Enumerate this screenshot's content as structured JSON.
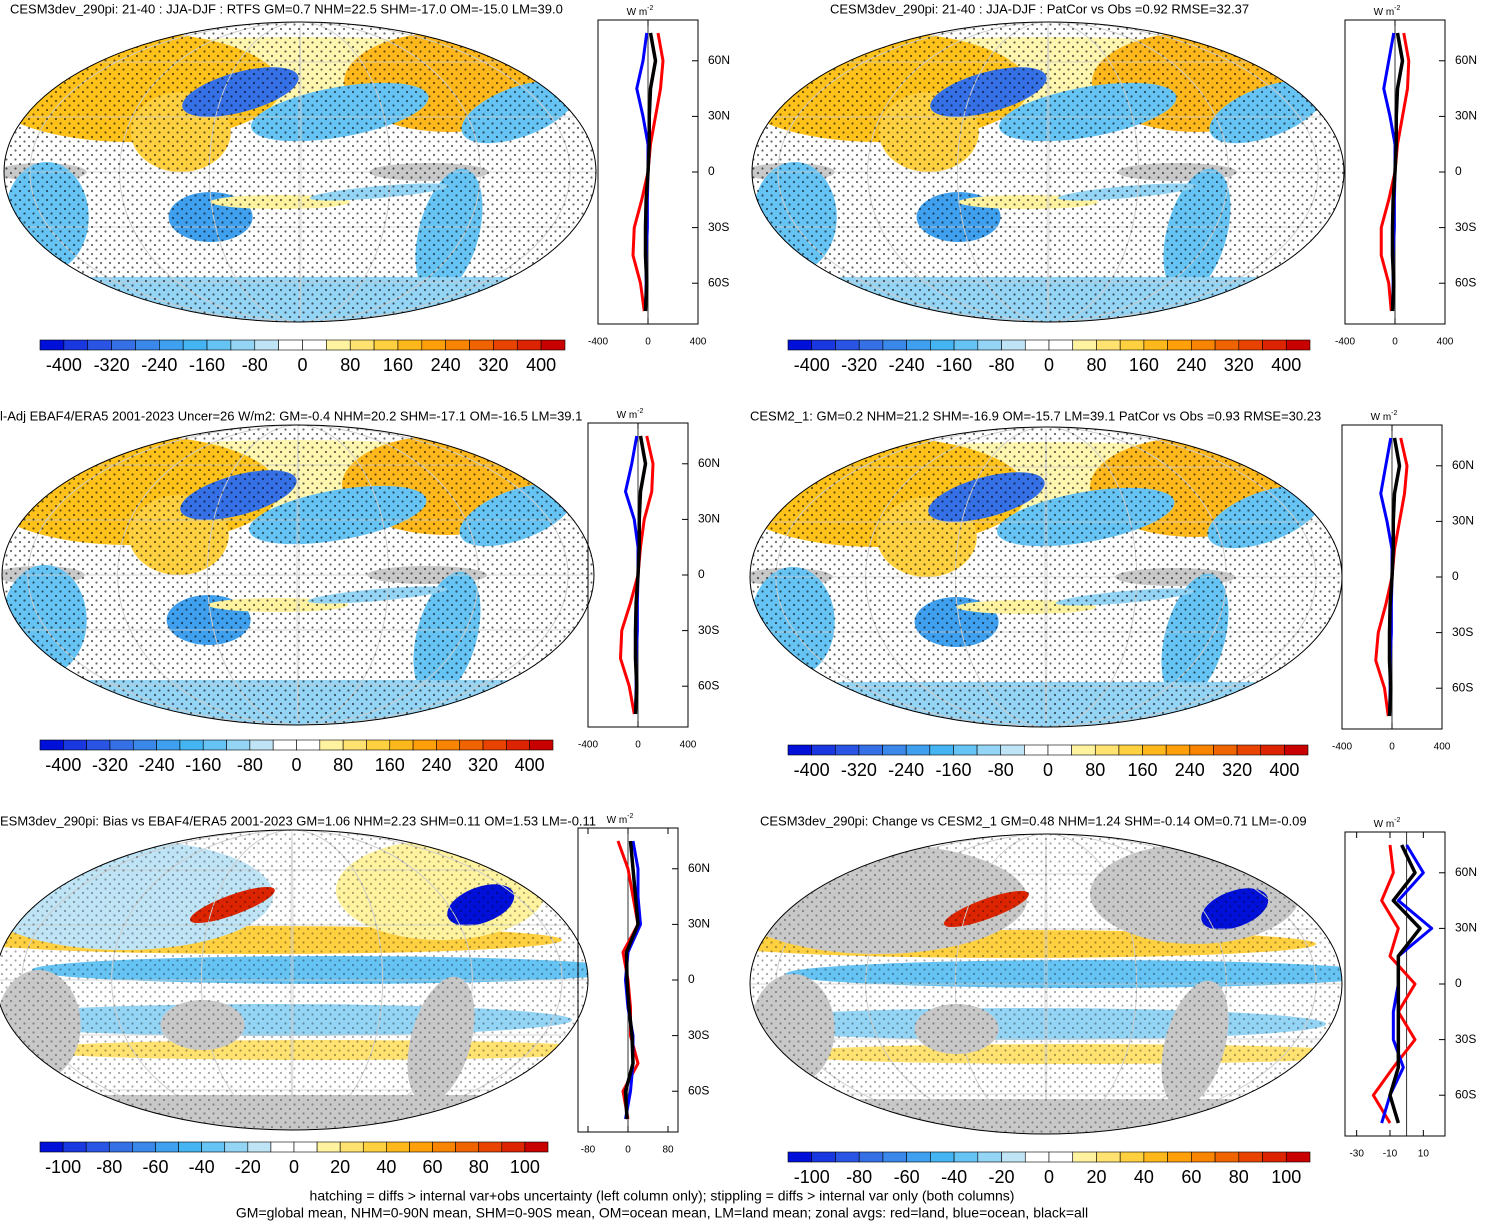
{
  "chart_data": [
    {
      "type": "map",
      "title": "CESM3dev_290pi: 21-40 : JJA-DJF : RTFS GM=0.7 NHM=22.5 SHM=-17.0 OM=-15.0 LM=39.0",
      "units": "W m",
      "units_sup": "-2",
      "colors": [
        "#0010d8",
        "#1a38e0",
        "#2a55e4",
        "#3570e6",
        "#3a88ea",
        "#3ea0ee",
        "#44b4f2",
        "#66c4f4",
        "#94d4f4",
        "#bfe4f6",
        "#ffffff",
        "#ffffff",
        "#fff3a0",
        "#ffe270",
        "#ffd040",
        "#ffb81c",
        "#ffa00a",
        "#f88400",
        "#f06400",
        "#e84400",
        "#dc2400",
        "#c80000"
      ],
      "clim": [
        -440,
        440
      ],
      "cticks": [
        -400,
        -320,
        -240,
        -160,
        -80,
        0,
        80,
        160,
        240,
        320,
        400
      ],
      "y": [
        -75,
        -60,
        -45,
        -30,
        -15,
        0,
        15,
        30,
        45,
        60,
        75
      ],
      "series": [
        {
          "color": "#ff0000",
          "values": [
            -30,
            -60,
            -120,
            -110,
            -50,
            0,
            20,
            60,
            100,
            120,
            80
          ]
        },
        {
          "color": "#0000ff",
          "values": [
            -20,
            -15,
            -15,
            -5,
            -5,
            0,
            0,
            -40,
            -90,
            -40,
            -10
          ]
        },
        {
          "color": "#000000",
          "values": [
            -20,
            -10,
            -20,
            -20,
            -15,
            0,
            10,
            10,
            20,
            60,
            20
          ]
        }
      ],
      "xlim": [
        -400,
        400
      ],
      "xticks": [
        -400,
        0,
        400
      ],
      "ylim": [
        -82,
        82
      ],
      "yticks": [
        {
          "value": 60,
          "label": "60N"
        },
        {
          "value": 30,
          "label": "30N"
        },
        0,
        {
          "value": -30,
          "label": "30S"
        },
        {
          "value": -60,
          "label": "60S"
        }
      ]
    },
    {
      "type": "map",
      "title": "CESM3dev_290pi: 21-40 : JJA-DJF : PatCor vs Obs =0.92 RMSE=32.37",
      "units": "W m",
      "units_sup": "-2",
      "colors": [
        "#0010d8",
        "#1a38e0",
        "#2a55e4",
        "#3570e6",
        "#3a88ea",
        "#3ea0ee",
        "#44b4f2",
        "#66c4f4",
        "#94d4f4",
        "#bfe4f6",
        "#ffffff",
        "#ffffff",
        "#fff3a0",
        "#ffe270",
        "#ffd040",
        "#ffb81c",
        "#ffa00a",
        "#f88400",
        "#f06400",
        "#e84400",
        "#dc2400",
        "#c80000"
      ],
      "clim": [
        -440,
        440
      ],
      "cticks": [
        -400,
        -320,
        -240,
        -160,
        -80,
        0,
        80,
        160,
        240,
        320,
        400
      ],
      "y": [
        -75,
        -60,
        -45,
        -30,
        -15,
        0,
        15,
        30,
        45,
        60,
        75
      ],
      "series": [
        {
          "color": "#ff0000",
          "values": [
            -30,
            -50,
            -110,
            -110,
            -50,
            0,
            20,
            60,
            100,
            110,
            70
          ]
        },
        {
          "color": "#0000ff",
          "values": [
            -20,
            -15,
            -15,
            -5,
            -5,
            0,
            0,
            -40,
            -90,
            -50,
            -10
          ]
        },
        {
          "color": "#000000",
          "values": [
            -20,
            -10,
            -20,
            -20,
            -15,
            0,
            10,
            10,
            20,
            60,
            20
          ]
        }
      ],
      "xlim": [
        -400,
        400
      ],
      "xticks": [
        -400,
        0,
        400
      ],
      "ylim": [
        -82,
        82
      ],
      "yticks": [
        {
          "value": 60,
          "label": "60N"
        },
        {
          "value": 30,
          "label": "30N"
        },
        0,
        {
          "value": -30,
          "label": "30S"
        },
        {
          "value": -60,
          "label": "60S"
        }
      ]
    },
    {
      "type": "map",
      "title": "l-Adj EBAF4/ERA5 2001-2023 Uncer=26 W/m2: GM=-0.4 NHM=20.2 SHM=-17.1 OM=-16.5 LM=39.1",
      "units": "W m",
      "units_sup": "-2",
      "colors": [
        "#0010d8",
        "#1a38e0",
        "#2a55e4",
        "#3570e6",
        "#3a88ea",
        "#3ea0ee",
        "#44b4f2",
        "#66c4f4",
        "#94d4f4",
        "#bfe4f6",
        "#ffffff",
        "#ffffff",
        "#fff3a0",
        "#ffe270",
        "#ffd040",
        "#ffb81c",
        "#ffa00a",
        "#f88400",
        "#f06400",
        "#e84400",
        "#dc2400",
        "#c80000"
      ],
      "clim": [
        -440,
        440
      ],
      "cticks": [
        -400,
        -320,
        -240,
        -160,
        -80,
        0,
        80,
        160,
        240,
        320,
        400
      ],
      "y": [
        -75,
        -60,
        -45,
        -30,
        -15,
        0,
        15,
        30,
        45,
        60,
        75
      ],
      "series": [
        {
          "color": "#ff0000",
          "values": [
            -30,
            -70,
            -140,
            -130,
            -60,
            0,
            20,
            50,
            110,
            120,
            70
          ]
        },
        {
          "color": "#0000ff",
          "values": [
            -20,
            -15,
            -15,
            -5,
            -5,
            0,
            0,
            -30,
            -100,
            -50,
            -10
          ]
        },
        {
          "color": "#000000",
          "values": [
            -20,
            -10,
            -20,
            -20,
            -15,
            0,
            10,
            10,
            20,
            60,
            20
          ]
        }
      ],
      "xlim": [
        -400,
        400
      ],
      "xticks": [
        -400,
        0,
        400
      ],
      "ylim": [
        -82,
        82
      ],
      "yticks": [
        {
          "value": 60,
          "label": "60N"
        },
        {
          "value": 30,
          "label": "30N"
        },
        0,
        {
          "value": -30,
          "label": "30S"
        },
        {
          "value": -60,
          "label": "60S"
        }
      ]
    },
    {
      "type": "map",
      "title": "CESM2_1: GM=0.2 NHM=21.2 SHM=-16.9 OM=-15.7 LM=39.1 PatCor vs Obs =0.93 RMSE=30.23",
      "units": "W m",
      "units_sup": "-2",
      "colors": [
        "#0010d8",
        "#1a38e0",
        "#2a55e4",
        "#3570e6",
        "#3a88ea",
        "#3ea0ee",
        "#44b4f2",
        "#66c4f4",
        "#94d4f4",
        "#bfe4f6",
        "#ffffff",
        "#ffffff",
        "#fff3a0",
        "#ffe270",
        "#ffd040",
        "#ffb81c",
        "#ffa00a",
        "#f88400",
        "#f06400",
        "#e84400",
        "#dc2400",
        "#c80000"
      ],
      "clim": [
        -440,
        440
      ],
      "cticks": [
        -400,
        -320,
        -240,
        -160,
        -80,
        0,
        80,
        160,
        240,
        320,
        400
      ],
      "y": [
        -75,
        -60,
        -45,
        -30,
        -15,
        0,
        15,
        30,
        45,
        60,
        75
      ],
      "series": [
        {
          "color": "#ff0000",
          "values": [
            -30,
            -60,
            -130,
            -110,
            -50,
            0,
            20,
            60,
            100,
            120,
            70
          ]
        },
        {
          "color": "#0000ff",
          "values": [
            -20,
            -15,
            -15,
            -5,
            -5,
            0,
            0,
            -40,
            -90,
            -50,
            -10
          ]
        },
        {
          "color": "#000000",
          "values": [
            -20,
            -10,
            -20,
            -20,
            -15,
            0,
            10,
            10,
            20,
            60,
            20
          ]
        }
      ],
      "xlim": [
        -400,
        400
      ],
      "xticks": [
        -400,
        0,
        400
      ],
      "ylim": [
        -82,
        82
      ],
      "yticks": [
        {
          "value": 60,
          "label": "60N"
        },
        {
          "value": 30,
          "label": "30N"
        },
        0,
        {
          "value": -30,
          "label": "30S"
        },
        {
          "value": -60,
          "label": "60S"
        }
      ]
    },
    {
      "type": "map",
      "title": "ESM3dev_290pi: Bias vs EBAF4/ERA5 2001-2023 GM=1.06 NHM=2.23 SHM=0.11 OM=1.53 LM=-0.11",
      "units": "W m",
      "units_sup": "-2",
      "colors": [
        "#0010d8",
        "#1a38e0",
        "#2a55e4",
        "#3570e6",
        "#3a88ea",
        "#3ea0ee",
        "#44b4f2",
        "#66c4f4",
        "#94d4f4",
        "#bfe4f6",
        "#ffffff",
        "#ffffff",
        "#fff3a0",
        "#ffe270",
        "#ffd040",
        "#ffb81c",
        "#ffa00a",
        "#f88400",
        "#f06400",
        "#e84400",
        "#dc2400",
        "#c80000"
      ],
      "clim": [
        -110,
        110
      ],
      "cticks": [
        -100,
        -80,
        -60,
        -40,
        -20,
        0,
        20,
        40,
        60,
        80,
        100
      ],
      "y": [
        -75,
        -60,
        -45,
        -30,
        -15,
        0,
        15,
        30,
        45,
        60,
        75
      ],
      "series": [
        {
          "color": "#ff0000",
          "values": [
            0,
            -10,
            20,
            5,
            5,
            0,
            -10,
            20,
            10,
            0,
            -20
          ]
        },
        {
          "color": "#0000ff",
          "values": [
            -5,
            5,
            10,
            10,
            0,
            -5,
            0,
            25,
            20,
            20,
            10
          ]
        },
        {
          "color": "#000000",
          "values": [
            -2,
            -5,
            10,
            8,
            2,
            -2,
            -3,
            20,
            15,
            10,
            5
          ]
        }
      ],
      "xlim": [
        -100,
        100
      ],
      "xticks": [
        -80,
        0,
        80
      ],
      "ylim": [
        -82,
        82
      ],
      "yticks": [
        {
          "value": 60,
          "label": "60N"
        },
        {
          "value": 30,
          "label": "30N"
        },
        0,
        {
          "value": -30,
          "label": "30S"
        },
        {
          "value": -60,
          "label": "60S"
        }
      ]
    },
    {
      "type": "map",
      "title": "CESM3dev_290pi: Change vs CESM2_1 GM=0.48 NHM=1.24 SHM=-0.14 OM=0.71 LM=-0.09",
      "units": "W m",
      "units_sup": "-2",
      "colors": [
        "#0010d8",
        "#1a38e0",
        "#2a55e4",
        "#3570e6",
        "#3a88ea",
        "#3ea0ee",
        "#44b4f2",
        "#66c4f4",
        "#94d4f4",
        "#bfe4f6",
        "#ffffff",
        "#ffffff",
        "#fff3a0",
        "#ffe270",
        "#ffd040",
        "#ffb81c",
        "#ffa00a",
        "#f88400",
        "#f06400",
        "#e84400",
        "#dc2400",
        "#c80000"
      ],
      "clim": [
        -110,
        110
      ],
      "cticks": [
        -100,
        -80,
        -60,
        -40,
        -20,
        0,
        20,
        40,
        60,
        80,
        100
      ],
      "y": [
        -75,
        -60,
        -45,
        -30,
        -15,
        0,
        15,
        30,
        45,
        60,
        75
      ],
      "series": [
        {
          "color": "#ff0000",
          "values": [
            -10,
            -20,
            -8,
            5,
            -5,
            5,
            -10,
            -5,
            -15,
            -8,
            -10
          ]
        },
        {
          "color": "#0000ff",
          "values": [
            -15,
            -10,
            -2,
            -8,
            -8,
            -5,
            -5,
            15,
            -5,
            10,
            0
          ]
        },
        {
          "color": "#000000",
          "values": [
            -5,
            -10,
            -5,
            -5,
            -5,
            -5,
            -5,
            8,
            -8,
            5,
            -3
          ]
        }
      ],
      "xlim": [
        -37,
        23
      ],
      "xticks": [
        -30,
        -10,
        10
      ],
      "ylim": [
        -82,
        82
      ],
      "yticks": [
        {
          "value": 60,
          "label": "60N"
        },
        {
          "value": 30,
          "label": "30N"
        },
        0,
        {
          "value": -30,
          "label": "30S"
        },
        {
          "value": -60,
          "label": "60S"
        }
      ]
    }
  ],
  "footer": [
    "hatching = diffs > internal var+obs uncertainty (left column only); stippling = diffs > internal var only (both columns)",
    "GM=global mean, NHM=0-90N mean, SHM=0-90S mean, OM=ocean mean, LM=land mean; zonal avgs: red=land, blue=ocean, black=all"
  ]
}
